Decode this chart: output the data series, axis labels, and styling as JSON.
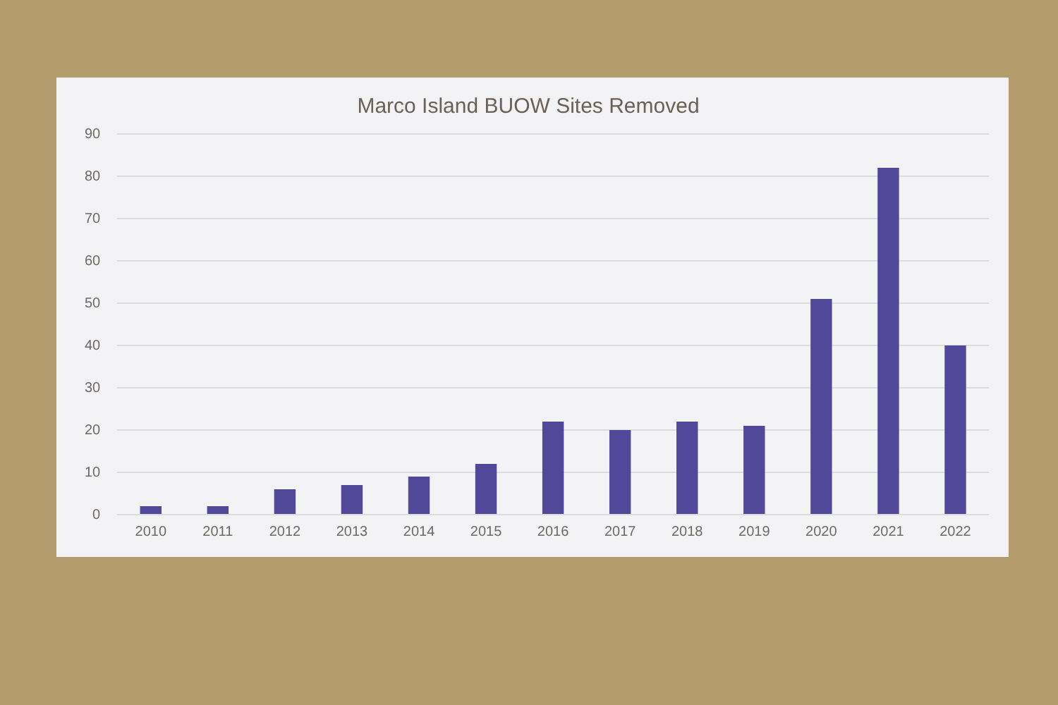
{
  "chart_data": {
    "type": "bar",
    "title": "Marco Island BUOW Sites Removed",
    "categories": [
      "2010",
      "2011",
      "2012",
      "2013",
      "2014",
      "2015",
      "2016",
      "2017",
      "2018",
      "2019",
      "2020",
      "2021",
      "2022"
    ],
    "values": [
      2,
      2,
      6,
      7,
      9,
      12,
      22,
      20,
      22,
      21,
      51,
      82,
      40
    ],
    "color": "#52489a",
    "ylim": [
      0,
      90
    ],
    "yticks": [
      0,
      10,
      20,
      30,
      40,
      50,
      60,
      70,
      80,
      90
    ],
    "grid": "y"
  }
}
